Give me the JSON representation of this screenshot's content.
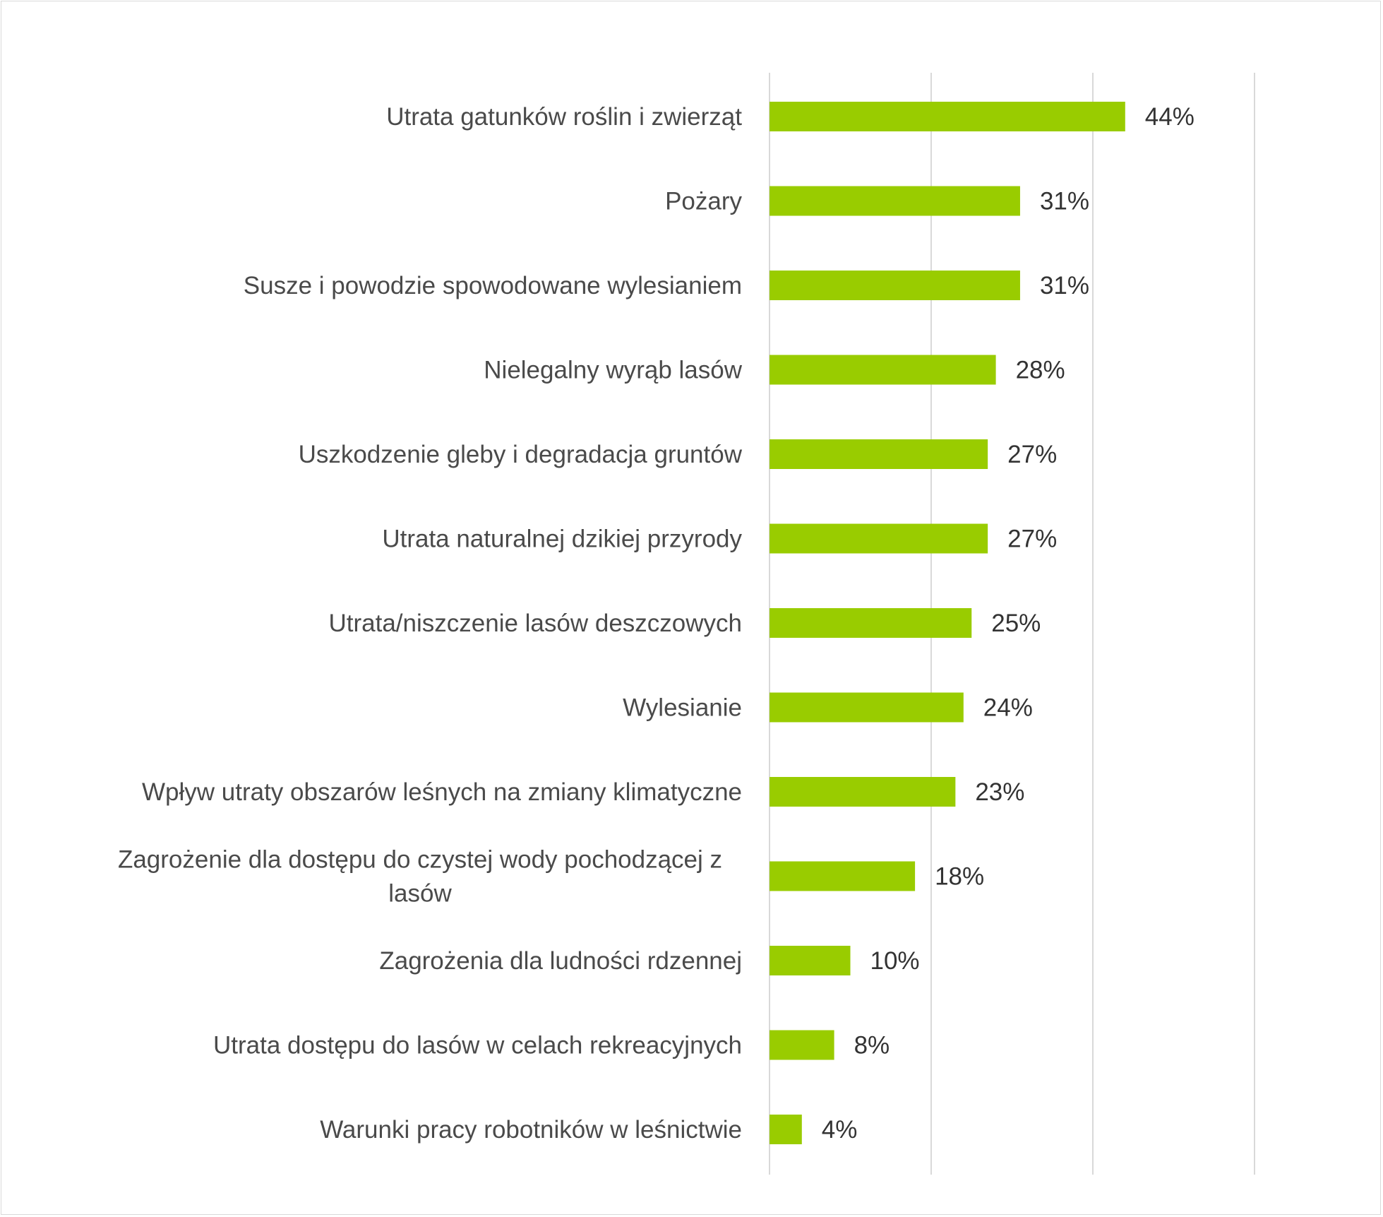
{
  "chart_data": {
    "type": "bar",
    "orientation": "horizontal",
    "title": "",
    "xlabel": "",
    "ylabel": "",
    "xlim": [
      0,
      60
    ],
    "x_gridlines": [
      0,
      20,
      40,
      60
    ],
    "x_ticks_shown": false,
    "legend": "none",
    "bar_color": "#99cc00",
    "grid_color": "#d9d9d9",
    "categories": [
      [
        "Utrata gatunków roślin i zwierząt"
      ],
      [
        "Pożary"
      ],
      [
        "Susze i powodzie spowodowane wylesianiem"
      ],
      [
        "Nielegalny wyrąb lasów"
      ],
      [
        "Uszkodzenie gleby i degradacja gruntów"
      ],
      [
        "Utrata naturalnej dzikiej przyrody"
      ],
      [
        "Utrata/niszczenie lasów deszczowych"
      ],
      [
        "Wylesianie"
      ],
      [
        "Wpływ utraty obszarów leśnych na zmiany klimatyczne"
      ],
      [
        "Zagrożenie dla dostępu do czystej wody pochodzącej z",
        "lasów"
      ],
      [
        "Zagrożenia dla ludności rdzennej"
      ],
      [
        "Utrata dostępu do lasów w celach rekreacyjnych"
      ],
      [
        "Warunki pracy robotników w leśnictwie"
      ]
    ],
    "values": [
      44,
      31,
      31,
      28,
      27,
      27,
      25,
      24,
      23,
      18,
      10,
      8,
      4
    ],
    "value_labels": [
      "44%",
      "31%",
      "31%",
      "28%",
      "27%",
      "27%",
      "25%",
      "24%",
      "23%",
      "18%",
      "10%",
      "8%",
      "4%"
    ]
  }
}
